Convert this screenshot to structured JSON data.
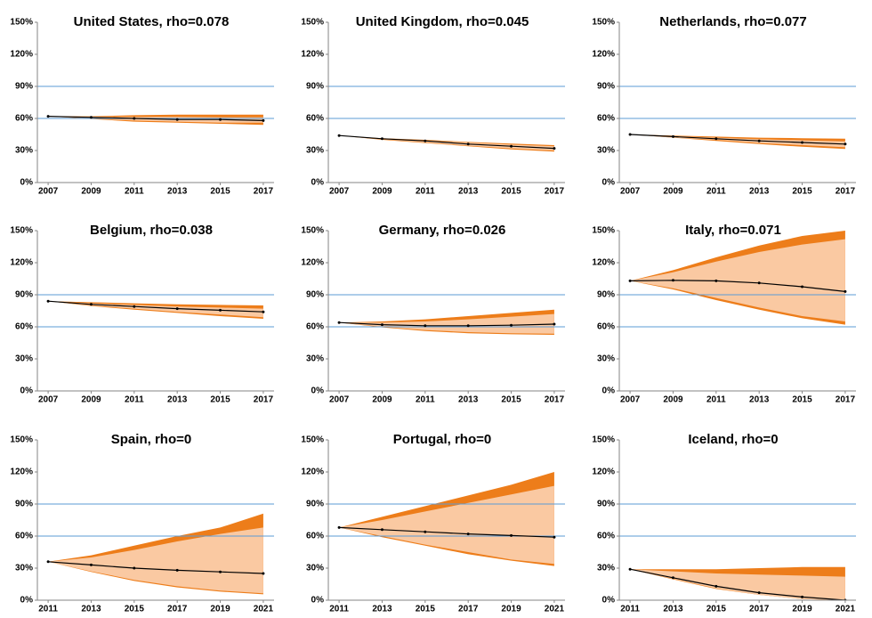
{
  "chart_data": [
    {
      "type": "fan",
      "title": "United States, rho=0.078",
      "x": [
        2007,
        2009,
        2011,
        2013,
        2015,
        2017
      ],
      "xlim": [
        2006.5,
        2017.5
      ],
      "xticks": [
        2007,
        2009,
        2011,
        2013,
        2015,
        2017
      ],
      "ylim": [
        0,
        150
      ],
      "yticks": [
        {
          "value": 0,
          "label": "0%"
        },
        {
          "value": 30,
          "label": "30%"
        },
        {
          "value": 60,
          "label": "60%"
        },
        {
          "value": 90,
          "label": "90%"
        },
        {
          "value": 120,
          "label": "120%"
        },
        {
          "value": 150,
          "label": "150%"
        }
      ],
      "reference_lines": [
        60,
        90
      ],
      "reference_color": "#5b9bd5",
      "median": [
        62,
        61,
        60,
        59,
        59,
        58
      ],
      "median_color": "#000000",
      "bands": [
        {
          "color": "#ed7d1a",
          "low": [
            62,
            59.5,
            57,
            56,
            55,
            54
          ],
          "high": [
            62,
            62,
            63,
            63.5,
            63.5,
            63.5
          ]
        },
        {
          "color": "#fac9a2",
          "low": [
            62,
            60,
            58,
            57,
            56,
            56
          ],
          "high": [
            62,
            61.5,
            61.5,
            61.5,
            61,
            61
          ]
        }
      ]
    },
    {
      "type": "fan",
      "title": "United Kingdom, rho=0.045",
      "x": [
        2007,
        2009,
        2011,
        2013,
        2015,
        2017
      ],
      "xlim": [
        2006.5,
        2017.5
      ],
      "xticks": [
        2007,
        2009,
        2011,
        2013,
        2015,
        2017
      ],
      "ylim": [
        0,
        150
      ],
      "yticks": [
        {
          "value": 0,
          "label": "0%"
        },
        {
          "value": 30,
          "label": "30%"
        },
        {
          "value": 60,
          "label": "60%"
        },
        {
          "value": 90,
          "label": "90%"
        },
        {
          "value": 120,
          "label": "120%"
        },
        {
          "value": 150,
          "label": "150%"
        }
      ],
      "reference_lines": [
        60,
        90
      ],
      "reference_color": "#5b9bd5",
      "median": [
        44,
        41,
        39,
        36,
        34,
        32
      ],
      "median_color": "#000000",
      "bands": [
        {
          "color": "#ed7d1a",
          "low": [
            44,
            40,
            37,
            34,
            31,
            29
          ],
          "high": [
            44,
            41.5,
            40,
            38,
            36.5,
            35
          ]
        },
        {
          "color": "#fac9a2",
          "low": [
            44,
            40.5,
            37.5,
            34.5,
            32,
            30
          ],
          "high": [
            44,
            41,
            39.5,
            37.5,
            35.5,
            34
          ]
        }
      ]
    },
    {
      "type": "fan",
      "title": "Netherlands, rho=0.077",
      "x": [
        2007,
        2009,
        2011,
        2013,
        2015,
        2017
      ],
      "xlim": [
        2006.5,
        2017.5
      ],
      "xticks": [
        2007,
        2009,
        2011,
        2013,
        2015,
        2017
      ],
      "ylim": [
        0,
        150
      ],
      "yticks": [
        {
          "value": 0,
          "label": "0%"
        },
        {
          "value": 30,
          "label": "30%"
        },
        {
          "value": 60,
          "label": "60%"
        },
        {
          "value": 90,
          "label": "90%"
        },
        {
          "value": 120,
          "label": "120%"
        },
        {
          "value": 150,
          "label": "150%"
        }
      ],
      "reference_lines": [
        60,
        90
      ],
      "reference_color": "#5b9bd5",
      "median": [
        45,
        43,
        41,
        39,
        37.5,
        36
      ],
      "median_color": "#000000",
      "bands": [
        {
          "color": "#ed7d1a",
          "low": [
            45,
            42,
            39,
            36,
            33.5,
            31.5
          ],
          "high": [
            45,
            44,
            43,
            42,
            41.5,
            41
          ]
        },
        {
          "color": "#fac9a2",
          "low": [
            45,
            42,
            40,
            37,
            35,
            33
          ],
          "high": [
            45,
            43.5,
            42,
            40.5,
            39.5,
            38.5
          ]
        }
      ]
    },
    {
      "type": "fan",
      "title": "Belgium, rho=0.038",
      "x": [
        2007,
        2009,
        2011,
        2013,
        2015,
        2017
      ],
      "xlim": [
        2006.5,
        2017.5
      ],
      "xticks": [
        2007,
        2009,
        2011,
        2013,
        2015,
        2017
      ],
      "ylim": [
        0,
        150
      ],
      "yticks": [
        {
          "value": 0,
          "label": "0%"
        },
        {
          "value": 30,
          "label": "30%"
        },
        {
          "value": 60,
          "label": "60%"
        },
        {
          "value": 90,
          "label": "90%"
        },
        {
          "value": 120,
          "label": "120%"
        },
        {
          "value": 150,
          "label": "150%"
        }
      ],
      "reference_lines": [
        60,
        90
      ],
      "reference_color": "#5b9bd5",
      "median": [
        84,
        81,
        79,
        77,
        75.5,
        74
      ],
      "median_color": "#000000",
      "bands": [
        {
          "color": "#ed7d1a",
          "low": [
            84,
            79.5,
            76,
            73,
            70,
            67.5
          ],
          "high": [
            84,
            83,
            82,
            81,
            80.5,
            80
          ]
        },
        {
          "color": "#fac9a2",
          "low": [
            84,
            80,
            77,
            74,
            71.5,
            69
          ],
          "high": [
            84,
            82,
            80.5,
            79,
            78,
            77
          ]
        }
      ]
    },
    {
      "type": "fan",
      "title": "Germany, rho=0.026",
      "x": [
        2007,
        2009,
        2011,
        2013,
        2015,
        2017
      ],
      "xlim": [
        2006.5,
        2017.5
      ],
      "xticks": [
        2007,
        2009,
        2011,
        2013,
        2015,
        2017
      ],
      "ylim": [
        0,
        150
      ],
      "yticks": [
        {
          "value": 0,
          "label": "0%"
        },
        {
          "value": 30,
          "label": "30%"
        },
        {
          "value": 60,
          "label": "60%"
        },
        {
          "value": 90,
          "label": "90%"
        },
        {
          "value": 120,
          "label": "120%"
        },
        {
          "value": 150,
          "label": "150%"
        }
      ],
      "reference_lines": [
        60,
        90
      ],
      "reference_color": "#5b9bd5",
      "median": [
        64,
        62,
        61,
        61,
        61.5,
        62.5
      ],
      "median_color": "#000000",
      "bands": [
        {
          "color": "#ed7d1a",
          "low": [
            64,
            59.5,
            56,
            54,
            53,
            52.5
          ],
          "high": [
            64,
            65,
            67,
            70,
            73,
            76
          ]
        },
        {
          "color": "#fac9a2",
          "low": [
            64,
            60,
            57,
            55,
            54,
            53.5
          ],
          "high": [
            64,
            64,
            65,
            67,
            69.5,
            72
          ]
        }
      ]
    },
    {
      "type": "fan",
      "title": "Italy, rho=0.071",
      "x": [
        2007,
        2009,
        2011,
        2013,
        2015,
        2017
      ],
      "xlim": [
        2006.5,
        2017.5
      ],
      "xticks": [
        2007,
        2009,
        2011,
        2013,
        2015,
        2017
      ],
      "ylim": [
        0,
        150
      ],
      "yticks": [
        {
          "value": 0,
          "label": "0%"
        },
        {
          "value": 30,
          "label": "30%"
        },
        {
          "value": 60,
          "label": "60%"
        },
        {
          "value": 90,
          "label": "90%"
        },
        {
          "value": 120,
          "label": "120%"
        },
        {
          "value": 150,
          "label": "150%"
        }
      ],
      "reference_lines": [
        60,
        90
      ],
      "reference_color": "#5b9bd5",
      "median": [
        103,
        103.5,
        103,
        101,
        97.5,
        93
      ],
      "median_color": "#000000",
      "bands": [
        {
          "color": "#ed7d1a",
          "low": [
            103,
            95,
            85,
            76,
            68,
            62
          ],
          "high": [
            103,
            113,
            125,
            136,
            145,
            150
          ]
        },
        {
          "color": "#fac9a2",
          "low": [
            103,
            96,
            87,
            78,
            70,
            65
          ],
          "high": [
            103,
            111,
            121,
            130,
            137,
            142
          ]
        }
      ]
    },
    {
      "type": "fan",
      "title": "Spain, rho=0",
      "x": [
        2011,
        2013,
        2015,
        2017,
        2019,
        2021
      ],
      "xlim": [
        2010.5,
        2021.5
      ],
      "xticks": [
        2011,
        2013,
        2015,
        2017,
        2019,
        2021
      ],
      "ylim": [
        0,
        150
      ],
      "yticks": [
        {
          "value": 0,
          "label": "0%"
        },
        {
          "value": 30,
          "label": "30%"
        },
        {
          "value": 60,
          "label": "60%"
        },
        {
          "value": 90,
          "label": "90%"
        },
        {
          "value": 120,
          "label": "120%"
        },
        {
          "value": 150,
          "label": "150%"
        }
      ],
      "reference_lines": [
        60,
        90
      ],
      "reference_color": "#5b9bd5",
      "median": [
        36,
        33,
        30,
        28,
        26.5,
        25
      ],
      "median_color": "#000000",
      "bands": [
        {
          "color": "#ed7d1a",
          "low": [
            36,
            26.5,
            18,
            12,
            8,
            5.5
          ],
          "high": [
            36,
            42,
            51,
            60,
            68,
            81
          ]
        },
        {
          "color": "#fac9a2",
          "low": [
            36,
            27,
            19,
            13,
            9,
            6.5
          ],
          "high": [
            36,
            40,
            47,
            55,
            62,
            68
          ]
        }
      ]
    },
    {
      "type": "fan",
      "title": "Portugal, rho=0",
      "x": [
        2011,
        2013,
        2015,
        2017,
        2019,
        2021
      ],
      "xlim": [
        2010.5,
        2021.5
      ],
      "xticks": [
        2011,
        2013,
        2015,
        2017,
        2019,
        2021
      ],
      "ylim": [
        0,
        150
      ],
      "yticks": [
        {
          "value": 0,
          "label": "0%"
        },
        {
          "value": 30,
          "label": "30%"
        },
        {
          "value": 60,
          "label": "60%"
        },
        {
          "value": 90,
          "label": "90%"
        },
        {
          "value": 120,
          "label": "120%"
        },
        {
          "value": 150,
          "label": "150%"
        }
      ],
      "reference_lines": [
        60,
        90
      ],
      "reference_color": "#5b9bd5",
      "median": [
        68,
        66,
        64,
        62,
        60.5,
        59
      ],
      "median_color": "#000000",
      "bands": [
        {
          "color": "#ed7d1a",
          "low": [
            68,
            59,
            51,
            43,
            37,
            32
          ],
          "high": [
            68,
            78,
            88,
            98,
            108,
            120
          ]
        },
        {
          "color": "#fac9a2",
          "low": [
            68,
            60,
            52,
            45,
            38,
            34
          ],
          "high": [
            68,
            75,
            83,
            91,
            99,
            107
          ]
        }
      ]
    },
    {
      "type": "fan",
      "title": "Iceland, rho=0",
      "x": [
        2011,
        2013,
        2015,
        2017,
        2019,
        2021
      ],
      "xlim": [
        2010.5,
        2021.5
      ],
      "xticks": [
        2011,
        2013,
        2015,
        2017,
        2019,
        2021
      ],
      "ylim": [
        0,
        150
      ],
      "yticks": [
        {
          "value": 0,
          "label": "0%"
        },
        {
          "value": 30,
          "label": "30%"
        },
        {
          "value": 60,
          "label": "60%"
        },
        {
          "value": 90,
          "label": "90%"
        },
        {
          "value": 120,
          "label": "120%"
        },
        {
          "value": 150,
          "label": "150%"
        }
      ],
      "reference_lines": [
        60,
        90
      ],
      "reference_color": "#5b9bd5",
      "median": [
        29,
        21,
        13,
        7,
        3,
        0
      ],
      "median_color": "#000000",
      "bands": [
        {
          "color": "#ed7d1a",
          "low": [
            29,
            19.5,
            10.5,
            5,
            1,
            0
          ],
          "high": [
            29,
            29,
            29,
            30,
            31,
            31
          ]
        },
        {
          "color": "#fac9a2",
          "low": [
            29,
            20,
            11,
            5,
            1,
            0
          ],
          "high": [
            29,
            27,
            25,
            24,
            23,
            22
          ]
        }
      ]
    }
  ]
}
